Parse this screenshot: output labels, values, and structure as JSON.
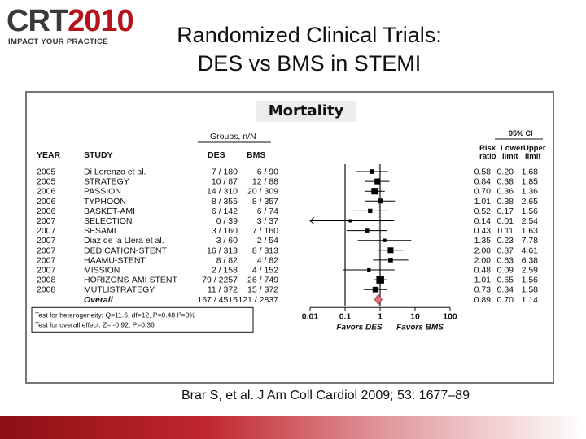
{
  "logo": {
    "crt": "CRT",
    "year": "2010",
    "tagline": "IMPACT YOUR PRACTICE"
  },
  "slide": {
    "title_line1": "Randomized Clinical Trials:",
    "title_line2": "DES vs BMS in STEMI"
  },
  "figure": {
    "label": "Mortality"
  },
  "citation": "Brar S, et al. J Am Coll Cardiol 2009; 53: 1677–89",
  "chart_data": {
    "type": "forest",
    "title": "Mortality",
    "group_header": "Groups, n/N",
    "ci_header": "95% CI",
    "columns": {
      "year": "YEAR",
      "study": "STUDY",
      "des": "DES",
      "bms": "BMS",
      "risk1": "Risk",
      "risk2": "ratio",
      "lower1": "Lower",
      "lower2": "limit",
      "upper1": "Upper",
      "upper2": "limit"
    },
    "x_scale": "log",
    "x_ticks": [
      0.01,
      0.1,
      1,
      10,
      100
    ],
    "x_tick_labels": [
      "0.01",
      "0.1",
      "1",
      "10",
      "100"
    ],
    "favors_left": "Favors DES",
    "favors_right": "Favors BMS",
    "rows": [
      {
        "year": "2005",
        "study": "Di Lorenzo et al.",
        "des": "7 / 180",
        "bms": "6 / 90",
        "rr": "0.58",
        "lower": "0.20",
        "upper": "1.68",
        "rr_val": 0.58,
        "lo_val": 0.2,
        "hi_val": 1.68,
        "weight": 0.45
      },
      {
        "year": "2005",
        "study": "STRATEGY",
        "des": "10 / 87",
        "bms": "12 / 88",
        "rr": "0.84",
        "lower": "0.38",
        "upper": "1.85",
        "rr_val": 0.84,
        "lo_val": 0.38,
        "hi_val": 1.85,
        "weight": 0.65
      },
      {
        "year": "2006",
        "study": "PASSION",
        "des": "14 / 310",
        "bms": "20 / 309",
        "rr": "0.70",
        "lower": "0.36",
        "upper": "1.36",
        "rr_val": 0.7,
        "lo_val": 0.36,
        "hi_val": 1.36,
        "weight": 0.8
      },
      {
        "year": "2006",
        "study": "TYPHOON",
        "des": "8 / 355",
        "bms": "8 / 357",
        "rr": "1.01",
        "lower": "0.38",
        "upper": "2.65",
        "rr_val": 1.01,
        "lo_val": 0.38,
        "hi_val": 2.65,
        "weight": 0.5
      },
      {
        "year": "2006",
        "study": "BASKET-AMI",
        "des": "6 / 142",
        "bms": "6 / 74",
        "rr": "0.52",
        "lower": "0.17",
        "upper": "1.56",
        "rr_val": 0.52,
        "lo_val": 0.17,
        "hi_val": 1.56,
        "weight": 0.4
      },
      {
        "year": "2007",
        "study": "SELECTION",
        "des": "0 / 39",
        "bms": "3 / 37",
        "rr": "0.14",
        "lower": "0.01",
        "upper": "2.54",
        "rr_val": 0.14,
        "lo_val": 0.01,
        "hi_val": 2.54,
        "weight": 0.2,
        "arrow_left": true
      },
      {
        "year": "2007",
        "study": "SESAMI",
        "des": "3 / 160",
        "bms": "7 / 160",
        "rr": "0.43",
        "lower": "0.11",
        "upper": "1.63",
        "rr_val": 0.43,
        "lo_val": 0.11,
        "hi_val": 1.63,
        "weight": 0.3
      },
      {
        "year": "2007",
        "study": "Diaz de la Llera et al.",
        "des": "3 / 60",
        "bms": "2 / 54",
        "rr": "1.35",
        "lower": "0.23",
        "upper": "7.78",
        "rr_val": 1.35,
        "lo_val": 0.23,
        "hi_val": 7.78,
        "weight": 0.25
      },
      {
        "year": "2007",
        "study": "DEDICATION-STENT",
        "des": "16 / 313",
        "bms": "8 / 313",
        "rr": "2.00",
        "lower": "0.87",
        "upper": "4.61",
        "rr_val": 2.0,
        "lo_val": 0.87,
        "hi_val": 4.61,
        "weight": 0.65
      },
      {
        "year": "2007",
        "study": "HAAMU-STENT",
        "des": "8 / 82",
        "bms": "4 / 82",
        "rr": "2.00",
        "lower": "0.63",
        "upper": "6.38",
        "rr_val": 2.0,
        "lo_val": 0.63,
        "hi_val": 6.38,
        "weight": 0.45
      },
      {
        "year": "2007",
        "study": "MISSION",
        "des": "2 / 158",
        "bms": "4 / 152",
        "rr": "0.48",
        "lower": "0.09",
        "upper": "2.59",
        "rr_val": 0.48,
        "lo_val": 0.09,
        "hi_val": 2.59,
        "weight": 0.25
      },
      {
        "year": "2008",
        "study": "HORIZONS-AMI STENT",
        "des": "79 / 2257",
        "bms": "26 / 749",
        "rr": "1.01",
        "lower": "0.65",
        "upper": "1.56",
        "rr_val": 1.01,
        "lo_val": 0.65,
        "hi_val": 1.56,
        "weight": 1.0
      },
      {
        "year": "2008",
        "study": "MUTLISTRATEGY",
        "des": "11 / 372",
        "bms": "15 / 372",
        "rr": "0.73",
        "lower": "0.34",
        "upper": "1.58",
        "rr_val": 0.73,
        "lo_val": 0.34,
        "hi_val": 1.58,
        "weight": 0.6
      }
    ],
    "overall": {
      "study": "Overall",
      "des": "167 / 4515",
      "bms": "121 / 2837",
      "rr": "0.89",
      "lower": "0.70",
      "upper": "1.14",
      "rr_val": 0.89,
      "lo_val": 0.7,
      "hi_val": 1.14
    },
    "heterogeneity": "Test for heterogeneity: Q=11.6, df=12, P=0.48 I²=0%",
    "overall_effect": "Test for overall effect: Z= -0.92, P=0.36",
    "colors": {
      "marker": "#000000",
      "overall_diamond": "#e0707a",
      "overall_outline": "#b03040"
    }
  }
}
